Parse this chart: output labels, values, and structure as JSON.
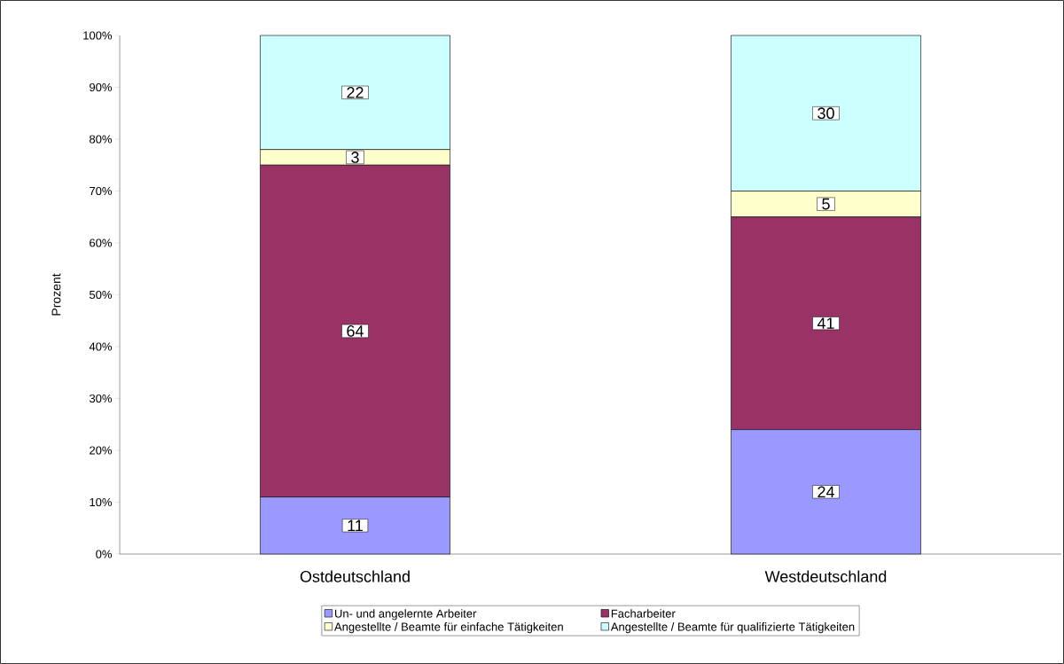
{
  "chart_data": {
    "type": "bar",
    "stacked": true,
    "ylabel": "Prozent",
    "categories": [
      "Ostdeutschland",
      "Westdeutschland"
    ],
    "series": [
      {
        "name": "Un- und angelernte Arbeiter",
        "color": "#9999ff",
        "values": [
          11,
          24
        ]
      },
      {
        "name": "Facharbeiter",
        "color": "#993366",
        "values": [
          64,
          41
        ]
      },
      {
        "name": "Angestellte / Beamte für einfache Tätigkeiten",
        "color": "#ffffcc",
        "values": [
          3,
          5
        ]
      },
      {
        "name": "Angestellte / Beamte für qualifizierte Tätigkeiten",
        "color": "#ccffff",
        "values": [
          22,
          30
        ]
      }
    ],
    "ylim": [
      0,
      100
    ],
    "yticks": [
      {
        "value": 0,
        "label": "0%"
      },
      {
        "value": 10,
        "label": "10%"
      },
      {
        "value": 20,
        "label": "20%"
      },
      {
        "value": 30,
        "label": "30%"
      },
      {
        "value": 40,
        "label": "40%"
      },
      {
        "value": 50,
        "label": "50%"
      },
      {
        "value": 60,
        "label": "60%"
      },
      {
        "value": 70,
        "label": "70%"
      },
      {
        "value": 80,
        "label": "80%"
      },
      {
        "value": 90,
        "label": "90%"
      },
      {
        "value": 100,
        "label": "100%"
      }
    ],
    "data_labels": true,
    "legend": "bottom",
    "grid": false
  }
}
